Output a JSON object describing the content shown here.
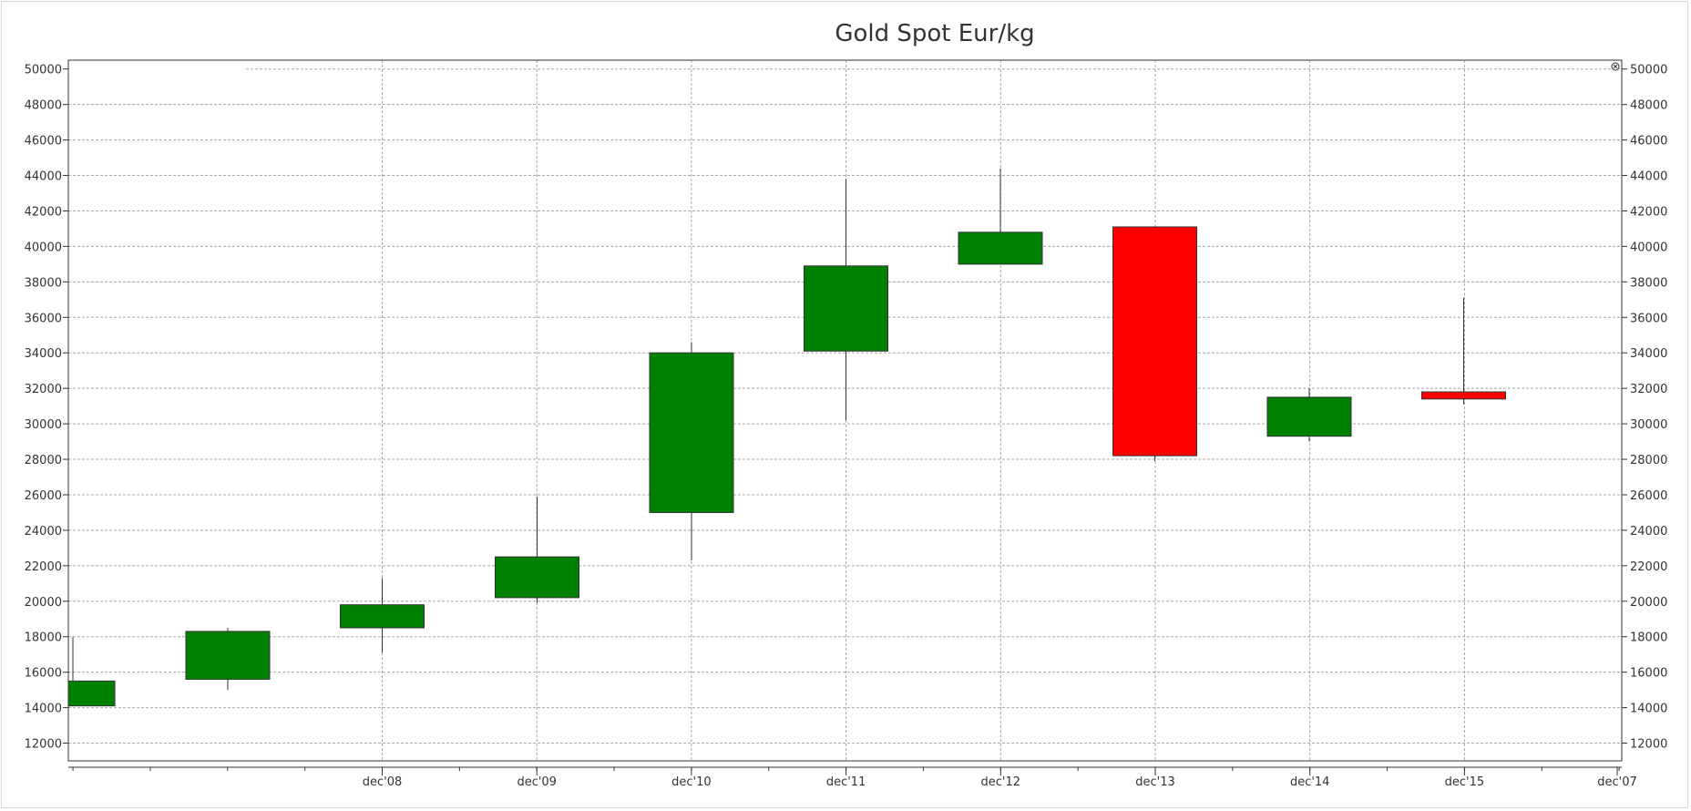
{
  "chart_data": {
    "type": "candlestick",
    "title": "Gold Spot Eur/kg",
    "xlabel": "",
    "ylabel": "",
    "ylim": [
      11000,
      50500
    ],
    "yticks": [
      12000,
      14000,
      16000,
      18000,
      20000,
      22000,
      24000,
      26000,
      28000,
      30000,
      32000,
      34000,
      36000,
      38000,
      40000,
      42000,
      44000,
      46000,
      48000,
      50000
    ],
    "xtick_labels": [
      "dec'08",
      "dec'09",
      "dec'10",
      "dec'11",
      "dec'12",
      "dec'13",
      "dec'14",
      "dec'15",
      "dec'07"
    ],
    "grid": true,
    "colors": {
      "up": "#008000",
      "down": "#ff0000"
    },
    "candles": [
      {
        "open": 14100,
        "high": 18000,
        "low": 14100,
        "close": 15500
      },
      {
        "open": 15600,
        "high": 18500,
        "low": 15000,
        "close": 18300
      },
      {
        "open": 18500,
        "high": 21300,
        "low": 17100,
        "close": 19800
      },
      {
        "open": 20200,
        "high": 25900,
        "low": 19900,
        "close": 22500
      },
      {
        "open": 25000,
        "high": 34600,
        "low": 22300,
        "close": 34000
      },
      {
        "open": 34100,
        "high": 43800,
        "low": 30200,
        "close": 38900
      },
      {
        "open": 39000,
        "high": 44400,
        "low": 39000,
        "close": 40800
      },
      {
        "open": 41100,
        "high": 41100,
        "low": 27900,
        "close": 28200
      },
      {
        "open": 29300,
        "high": 32000,
        "low": 29000,
        "close": 31500
      },
      {
        "open": 31800,
        "high": 37100,
        "low": 31100,
        "close": 31400
      }
    ]
  }
}
